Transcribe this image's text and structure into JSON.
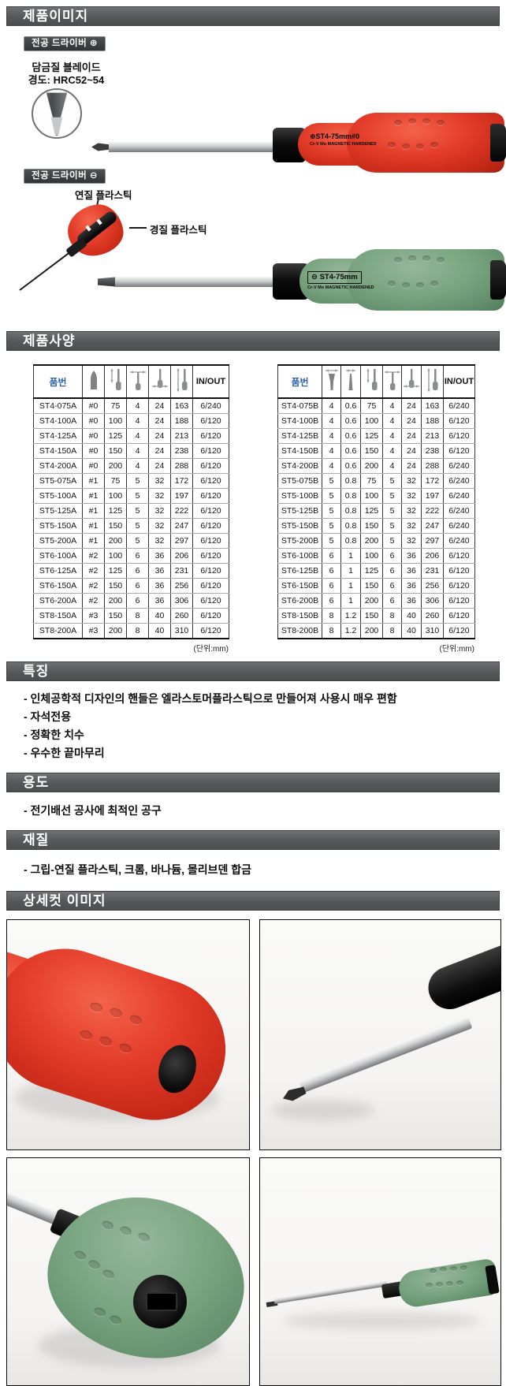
{
  "sections": {
    "product_image_title": "제품이미지",
    "specs_title": "제품사양",
    "features_title": "특징",
    "usage_title": "용도",
    "material_title": "재질",
    "detail_title": "상세컷 이미지"
  },
  "product_image": {
    "badge_plus": "전공 드라이버 ⊕",
    "hardening_note_line1": "담금질 블레이드",
    "hardening_note_line2": "경도: HRC52~54",
    "red_driver_label": "⊕ST4-75mm#0",
    "red_driver_sublabel": "Cr-V Mo MAGNETIC HARDENED",
    "badge_minus": "전공 드라이버 ⊖",
    "soft_plastic_label": "연질 플라스틱",
    "hard_plastic_label": "경질 플라스틱",
    "green_driver_label": "⊖ ST4-75mm",
    "green_driver_sublabel": "Cr-V Mo MAGNETIC HARDENED"
  },
  "specs": {
    "part_no_header": "품번",
    "in_out_header": "IN/OUT",
    "unit_note": "(단위:mm)",
    "table_a": {
      "icon_columns": [
        "tip-size",
        "blade-length",
        "tip-diameter",
        "handle-diameter",
        "overall-length"
      ],
      "rows": [
        [
          "ST4-075A",
          "#0",
          "75",
          "4",
          "24",
          "163",
          "6/240"
        ],
        [
          "ST4-100A",
          "#0",
          "100",
          "4",
          "24",
          "188",
          "6/120"
        ],
        [
          "ST4-125A",
          "#0",
          "125",
          "4",
          "24",
          "213",
          "6/120"
        ],
        [
          "ST4-150A",
          "#0",
          "150",
          "4",
          "24",
          "238",
          "6/120"
        ],
        [
          "ST4-200A",
          "#0",
          "200",
          "4",
          "24",
          "288",
          "6/120"
        ],
        [
          "ST5-075A",
          "#1",
          "75",
          "5",
          "32",
          "172",
          "6/120"
        ],
        [
          "ST5-100A",
          "#1",
          "100",
          "5",
          "32",
          "197",
          "6/120"
        ],
        [
          "ST5-125A",
          "#1",
          "125",
          "5",
          "32",
          "222",
          "6/120"
        ],
        [
          "ST5-150A",
          "#1",
          "150",
          "5",
          "32",
          "247",
          "6/120"
        ],
        [
          "ST5-200A",
          "#1",
          "200",
          "5",
          "32",
          "297",
          "6/120"
        ],
        [
          "ST6-100A",
          "#2",
          "100",
          "6",
          "36",
          "206",
          "6/120"
        ],
        [
          "ST6-125A",
          "#2",
          "125",
          "6",
          "36",
          "231",
          "6/120"
        ],
        [
          "ST6-150A",
          "#2",
          "150",
          "6",
          "36",
          "256",
          "6/120"
        ],
        [
          "ST6-200A",
          "#2",
          "200",
          "6",
          "36",
          "306",
          "6/120"
        ],
        [
          "ST8-150A",
          "#3",
          "150",
          "8",
          "40",
          "260",
          "6/120"
        ],
        [
          "ST8-200A",
          "#3",
          "200",
          "8",
          "40",
          "310",
          "6/120"
        ]
      ]
    },
    "table_b": {
      "icon_columns": [
        "blade-width",
        "blade-thickness",
        "blade-length",
        "tip-diameter",
        "handle-diameter",
        "overall-length"
      ],
      "rows": [
        [
          "ST4-075B",
          "4",
          "0.6",
          "75",
          "4",
          "24",
          "163",
          "6/240"
        ],
        [
          "ST4-100B",
          "4",
          "0.6",
          "100",
          "4",
          "24",
          "188",
          "6/120"
        ],
        [
          "ST4-125B",
          "4",
          "0.6",
          "125",
          "4",
          "24",
          "213",
          "6/120"
        ],
        [
          "ST4-150B",
          "4",
          "0.6",
          "150",
          "4",
          "24",
          "238",
          "6/120"
        ],
        [
          "ST4-200B",
          "4",
          "0.6",
          "200",
          "4",
          "24",
          "288",
          "6/240"
        ],
        [
          "ST5-075B",
          "5",
          "0.8",
          "75",
          "5",
          "32",
          "172",
          "6/240"
        ],
        [
          "ST5-100B",
          "5",
          "0.8",
          "100",
          "5",
          "32",
          "197",
          "6/240"
        ],
        [
          "ST5-125B",
          "5",
          "0.8",
          "125",
          "5",
          "32",
          "222",
          "6/240"
        ],
        [
          "ST5-150B",
          "5",
          "0.8",
          "150",
          "5",
          "32",
          "247",
          "6/240"
        ],
        [
          "ST5-200B",
          "5",
          "0.8",
          "200",
          "5",
          "32",
          "297",
          "6/240"
        ],
        [
          "ST6-100B",
          "6",
          "1",
          "100",
          "6",
          "36",
          "206",
          "6/120"
        ],
        [
          "ST6-125B",
          "6",
          "1",
          "125",
          "6",
          "36",
          "231",
          "6/120"
        ],
        [
          "ST6-150B",
          "6",
          "1",
          "150",
          "6",
          "36",
          "256",
          "6/120"
        ],
        [
          "ST6-200B",
          "6",
          "1",
          "200",
          "6",
          "36",
          "306",
          "6/120"
        ],
        [
          "ST8-150B",
          "8",
          "1.2",
          "150",
          "8",
          "40",
          "260",
          "6/120"
        ],
        [
          "ST8-200B",
          "8",
          "1.2",
          "200",
          "8",
          "40",
          "310",
          "6/120"
        ]
      ]
    }
  },
  "features": {
    "items": [
      "- 인체공학적 디자인의 핸들은 엘라스토머플라스틱으로 만들어져 사용시 매우 편함",
      "- 자석전용",
      "- 정확한 치수",
      "- 우수한 끝마무리"
    ]
  },
  "usage": {
    "text": "- 전기배선 공사에 최적인 공구"
  },
  "material": {
    "text": "- 그립-연질 플라스틱, 크롬, 바나듐, 몰리브덴 합금"
  },
  "colors": {
    "bar_gray": "#55575a",
    "red_handle": "#e23a28",
    "green_handle": "#7aa580",
    "part_no_blue": "#2f62a7"
  }
}
